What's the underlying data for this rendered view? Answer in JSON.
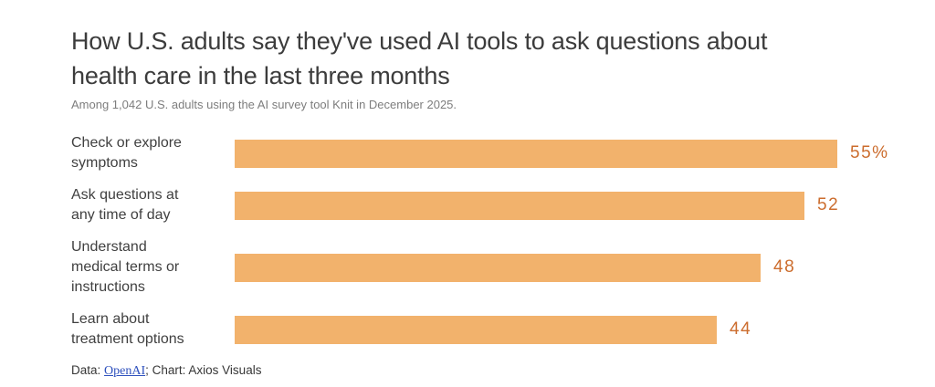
{
  "header": {
    "title": "How U.S. adults say they've used AI tools to ask questions about\nhealth care in the last three months",
    "subtitle": "Among 1,042 U.S. adults using the AI survey tool Knit in December 2025."
  },
  "rows": [
    {
      "label": "Check or explore\nsymptoms",
      "value": 55,
      "value_label": "55%"
    },
    {
      "label": "Ask questions at\nany time of day",
      "value": 52,
      "value_label": "52"
    },
    {
      "label": "Understand\nmedical terms or\ninstructions",
      "value": 48,
      "value_label": "48"
    },
    {
      "label": "Learn about\ntreatment options",
      "value": 44,
      "value_label": "44"
    }
  ],
  "footer": {
    "prefix": "Data: ",
    "link_label": "OpenAI",
    "suffix": "; Chart: Axios Visuals"
  },
  "colors": {
    "bar": "#F2B26C",
    "value_label": "#CC6D2E",
    "title": "#3C3C3C",
    "subtitle": "#7D7D7D",
    "row_label": "#404040",
    "footer_text": "#373737",
    "link": "#2D50BD"
  },
  "chart_data": {
    "type": "bar",
    "orientation": "horizontal",
    "title": "How U.S. adults say they've used AI tools to ask questions about health care in the last three months",
    "subtitle": "Among 1,042 U.S. adults using the AI survey tool Knit in December 2025.",
    "categories": [
      "Check or explore symptoms",
      "Ask questions at any time of day",
      "Understand medical terms or instructions",
      "Learn about treatment options"
    ],
    "values": [
      55,
      52,
      48,
      44
    ],
    "value_labels": [
      "55%",
      "52",
      "48",
      "44"
    ],
    "unit": "percent",
    "xlim": [
      0,
      55
    ],
    "grid": false,
    "legend": false,
    "source": "Data: OpenAI; Chart: Axios Visuals"
  }
}
